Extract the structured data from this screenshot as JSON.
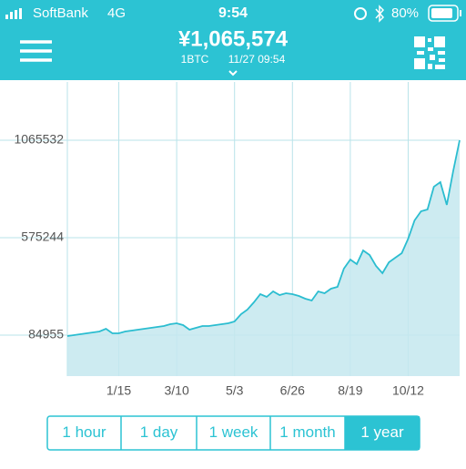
{
  "status_bar": {
    "carrier": "SoftBank",
    "network": "4G",
    "time": "9:54",
    "battery": "80%"
  },
  "header": {
    "price": "¥1,065,574",
    "unit": "1BTC",
    "timestamp": "11/27 09:54"
  },
  "chart_data": {
    "type": "area",
    "categories": [
      null,
      null,
      null,
      null,
      null,
      null,
      null,
      null,
      "1/15",
      null,
      null,
      null,
      null,
      null,
      null,
      null,
      null,
      "3/10",
      null,
      null,
      null,
      null,
      null,
      null,
      null,
      null,
      "5/3",
      null,
      null,
      null,
      null,
      null,
      null,
      null,
      null,
      "6/26",
      null,
      null,
      null,
      null,
      null,
      null,
      null,
      null,
      "8/19",
      null,
      null,
      null,
      null,
      null,
      null,
      null,
      null,
      "10/12",
      null,
      null,
      null,
      null,
      null,
      null,
      null,
      null
    ],
    "series": [
      {
        "name": "BTC",
        "color": "#2bbdd0",
        "values": [
          80373,
          84955,
          89537,
          94119,
          98701,
          103283,
          117029,
          94119,
          94119,
          103283,
          107865,
          112447,
          117029,
          121611,
          126193,
          130775,
          139939,
          144521,
          135357,
          112447,
          121611,
          130775,
          130775,
          135357,
          139939,
          144521,
          153685,
          190341,
          213251,
          249907,
          291145,
          277399,
          304891,
          286563,
          295727,
          291145,
          281981,
          268235,
          259071,
          304891,
          295727,
          318637,
          327801,
          419441,
          465261,
          442351,
          511079,
          488169,
          433187,
          396531,
          451515,
          474425,
          497335,
          570647,
          662287,
          708107,
          717271,
          831821,
          854731,
          740181,
          909715,
          1065532
        ]
      }
    ],
    "ylim": [
      -121235,
      1358751
    ],
    "yticks": [
      84955,
      575244,
      1065532
    ],
    "grid": true,
    "fill": "#c4e8ee"
  },
  "buttons": [
    {
      "label": "1 hour",
      "selected": false
    },
    {
      "label": "1 day",
      "selected": false
    },
    {
      "label": "1 week",
      "selected": false
    },
    {
      "label": "1 month",
      "selected": false
    },
    {
      "label": "1 year",
      "selected": true
    }
  ]
}
